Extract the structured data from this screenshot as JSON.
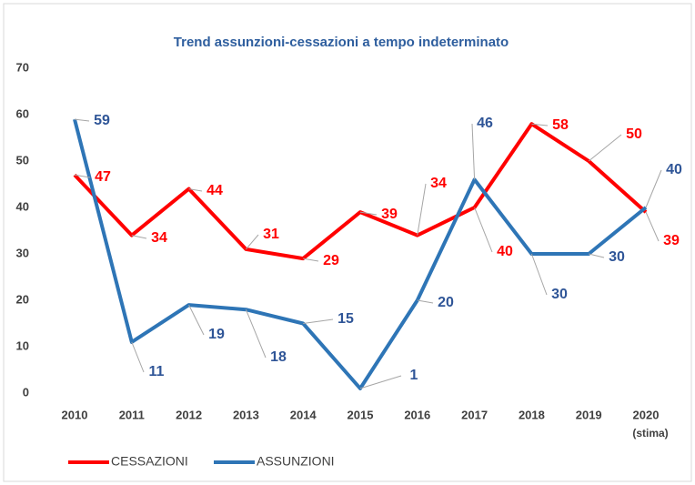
{
  "chart_data": {
    "type": "line",
    "title": "Trend assunzioni-cessazioni  a tempo indeterminato",
    "categories": [
      "2010",
      "2011",
      "2012",
      "2013",
      "2014",
      "2015",
      "2016",
      "2017",
      "2018",
      "2019",
      "2020"
    ],
    "category_note": "(stima)",
    "series": [
      {
        "name": "CESSAZIONI",
        "color": "#ff0000",
        "label_color": "#ff0000",
        "values": [
          47,
          34,
          44,
          31,
          29,
          39,
          34,
          40,
          58,
          50,
          39
        ]
      },
      {
        "name": "ASSUNZIONI",
        "color": "#2e75b6",
        "label_color": "#2f5597",
        "values": [
          59,
          11,
          19,
          18,
          15,
          1,
          20,
          46,
          30,
          30,
          40
        ]
      }
    ],
    "ylim": [
      0,
      70
    ],
    "yticks": [
      0,
      10,
      20,
      30,
      40,
      50,
      60,
      70
    ],
    "grid": false
  }
}
